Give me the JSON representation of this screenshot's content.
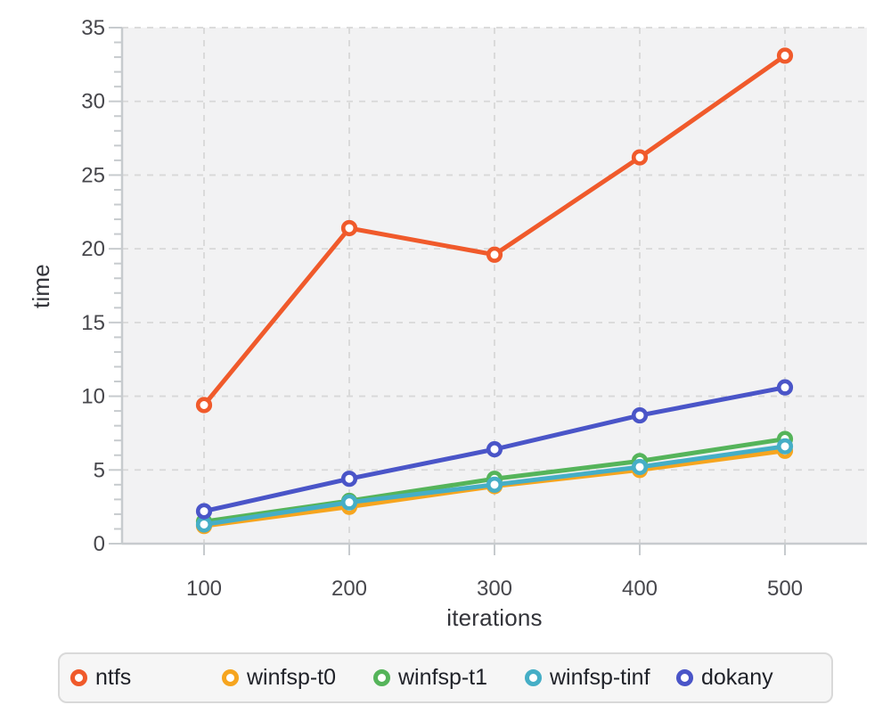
{
  "page": {
    "background": "#ffffff"
  },
  "chart_data": {
    "type": "line",
    "title": "",
    "xlabel": "iterations",
    "ylabel": "time",
    "x": [
      100,
      200,
      300,
      400,
      500
    ],
    "x_tick_labels": [
      "100",
      "200",
      "300",
      "400",
      "500"
    ],
    "y_ticks": [
      0,
      5,
      10,
      15,
      20,
      25,
      30,
      35
    ],
    "y_minor_tick_step": 1,
    "ylim": [
      0,
      35
    ],
    "grid": "dashed-both-axes",
    "legend_position": "bottom",
    "marker": "open-circle",
    "series": [
      {
        "name": "ntfs",
        "color": "#f05a2b",
        "values": [
          9.4,
          21.4,
          19.6,
          26.2,
          33.1
        ]
      },
      {
        "name": "winfsp-t0",
        "color": "#f6a51f",
        "values": [
          1.2,
          2.5,
          3.9,
          5.0,
          6.3
        ]
      },
      {
        "name": "winfsp-t1",
        "color": "#55b45a",
        "values": [
          1.5,
          2.9,
          4.4,
          5.6,
          7.1
        ]
      },
      {
        "name": "winfsp-tinf",
        "color": "#45aec6",
        "values": [
          1.3,
          2.8,
          4.0,
          5.2,
          6.6
        ]
      },
      {
        "name": "dokany",
        "color": "#4a55c8",
        "values": [
          2.2,
          4.4,
          6.4,
          8.7,
          10.6
        ]
      }
    ],
    "colors": {
      "plot_bg": "#f2f2f3",
      "grid": "#d8d8d8",
      "axis": "#c7cbce",
      "tick_label": "#47474c",
      "axis_title": "#33343a",
      "legend_text": "#1f2128",
      "legend_bg": "#f6f6f6",
      "legend_border": "#d9d9d9"
    }
  }
}
